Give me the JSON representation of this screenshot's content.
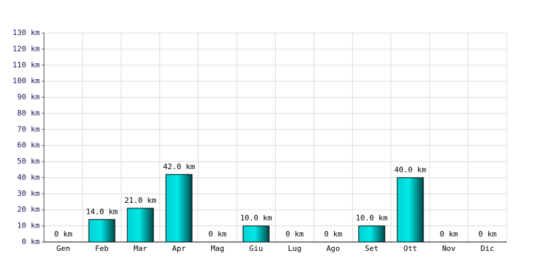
{
  "chart_data": {
    "type": "bar",
    "categories": [
      "Gen",
      "Feb",
      "Mar",
      "Apr",
      "Mag",
      "Giu",
      "Lug",
      "Ago",
      "Set",
      "Ott",
      "Nov",
      "Dic"
    ],
    "values": [
      0,
      14,
      21,
      42,
      0,
      10,
      0,
      0,
      10,
      40,
      0,
      0
    ],
    "value_labels": [
      "0 km",
      "14.0 km",
      "21.0 km",
      "42.0 km",
      "0 km",
      "10.0 km",
      "0 km",
      "0 km",
      "10.0 km",
      "40.0 km",
      "0 km",
      "0 km"
    ],
    "color": "#00d0d0",
    "ylim": [
      0,
      130
    ],
    "yticks": [
      {
        "value": 0,
        "label": "0 km"
      },
      {
        "value": 10,
        "label": "10 km"
      },
      {
        "value": 20,
        "label": "20 km"
      },
      {
        "value": 30,
        "label": "30 km"
      },
      {
        "value": 40,
        "label": "40 km"
      },
      {
        "value": 50,
        "label": "50 km"
      },
      {
        "value": 60,
        "label": "60 km"
      },
      {
        "value": 70,
        "label": "70 km"
      },
      {
        "value": 80,
        "label": "80 km"
      },
      {
        "value": 90,
        "label": "90 km"
      },
      {
        "value": 100,
        "label": "100 km"
      },
      {
        "value": 110,
        "label": "110 km"
      },
      {
        "value": 120,
        "label": "120 km"
      },
      {
        "value": 130,
        "label": "130 km"
      }
    ],
    "grid": true
  }
}
